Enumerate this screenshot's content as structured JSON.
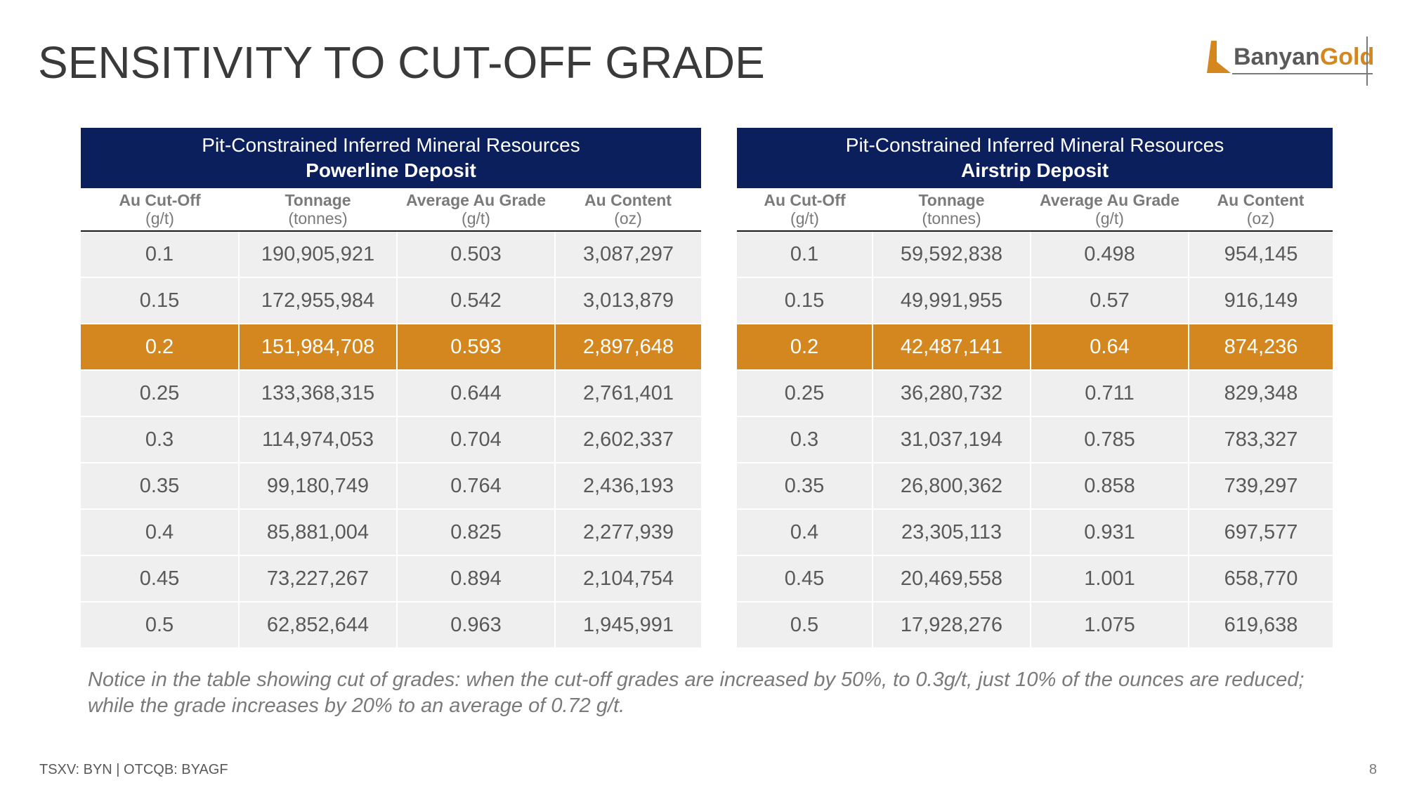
{
  "slide": {
    "title": "SENSITIVITY TO CUT-OFF GRADE",
    "logo": {
      "part1": "Banyan",
      "part2": "Gold"
    },
    "note": "Notice in the table showing cut of grades: when the cut-off grades are increased by 50%, to 0.3g/t, just 10% of the ounces are reduced; while the grade increases by 20% to an average of 0.72 g/t.",
    "footer_left": "TSXV: BYN | OTCQB: BYAGF",
    "page_number": "8"
  },
  "colors": {
    "navy": "#0b1f5c",
    "highlight": "#d4871e",
    "row_bg": "#efefef"
  },
  "tables": [
    {
      "header_line1": "Pit-Constrained Inferred Mineral Resources",
      "header_line2": "Powerline Deposit",
      "columns": [
        {
          "name": "Au Cut-Off",
          "unit": "(g/t)"
        },
        {
          "name": "Tonnage",
          "unit": "(tonnes)"
        },
        {
          "name": "Average Au Grade",
          "unit": "(g/t)"
        },
        {
          "name": "Au Content",
          "unit": "(oz)"
        }
      ],
      "highlighted_row": 2,
      "rows": [
        [
          "0.1",
          "190,905,921",
          "0.503",
          "3,087,297"
        ],
        [
          "0.15",
          "172,955,984",
          "0.542",
          "3,013,879"
        ],
        [
          "0.2",
          "151,984,708",
          "0.593",
          "2,897,648"
        ],
        [
          "0.25",
          "133,368,315",
          "0.644",
          "2,761,401"
        ],
        [
          "0.3",
          "114,974,053",
          "0.704",
          "2,602,337"
        ],
        [
          "0.35",
          "99,180,749",
          "0.764",
          "2,436,193"
        ],
        [
          "0.4",
          "85,881,004",
          "0.825",
          "2,277,939"
        ],
        [
          "0.45",
          "73,227,267",
          "0.894",
          "2,104,754"
        ],
        [
          "0.5",
          "62,852,644",
          "0.963",
          "1,945,991"
        ]
      ]
    },
    {
      "header_line1": "Pit-Constrained Inferred Mineral Resources",
      "header_line2": "Airstrip Deposit",
      "columns": [
        {
          "name": "Au Cut-Off",
          "unit": "(g/t)"
        },
        {
          "name": "Tonnage",
          "unit": "(tonnes)"
        },
        {
          "name": "Average Au Grade",
          "unit": "(g/t)"
        },
        {
          "name": "Au Content",
          "unit": "(oz)"
        }
      ],
      "highlighted_row": 2,
      "rows": [
        [
          "0.1",
          "59,592,838",
          "0.498",
          "954,145"
        ],
        [
          "0.15",
          "49,991,955",
          "0.57",
          "916,149"
        ],
        [
          "0.2",
          "42,487,141",
          "0.64",
          "874,236"
        ],
        [
          "0.25",
          "36,280,732",
          "0.711",
          "829,348"
        ],
        [
          "0.3",
          "31,037,194",
          "0.785",
          "783,327"
        ],
        [
          "0.35",
          "26,800,362",
          "0.858",
          "739,297"
        ],
        [
          "0.4",
          "23,305,113",
          "0.931",
          "697,577"
        ],
        [
          "0.45",
          "20,469,558",
          "1.001",
          "658,770"
        ],
        [
          "0.5",
          "17,928,276",
          "1.075",
          "619,638"
        ]
      ]
    }
  ]
}
